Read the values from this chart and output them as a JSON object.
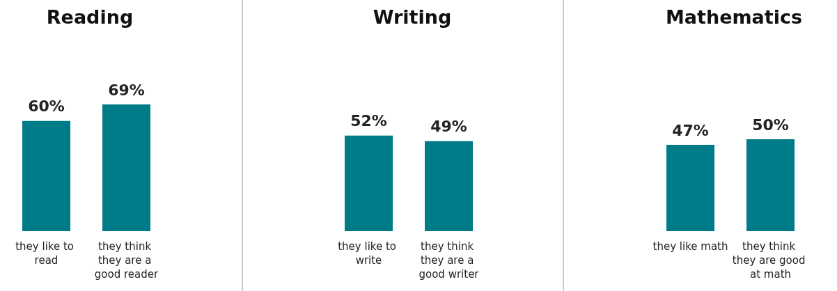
{
  "chart_data": [
    {
      "type": "bar",
      "title": "Reading",
      "categories": [
        "they like to read",
        "they think they are a good reader"
      ],
      "values": [
        60,
        69
      ],
      "value_labels": [
        "60%",
        "69%"
      ],
      "color": "#007c89"
    },
    {
      "type": "bar",
      "title": "Writing",
      "categories": [
        "they like to write",
        "they think they are a good writer"
      ],
      "values": [
        52,
        49
      ],
      "value_labels": [
        "52%",
        "49%"
      ],
      "color": "#007c89"
    },
    {
      "type": "bar",
      "title": "Mathematics",
      "categories": [
        "they like math",
        "they think they are good at math"
      ],
      "values": [
        47,
        50
      ],
      "value_labels": [
        "47%",
        "50%"
      ],
      "color": "#007c89"
    }
  ]
}
